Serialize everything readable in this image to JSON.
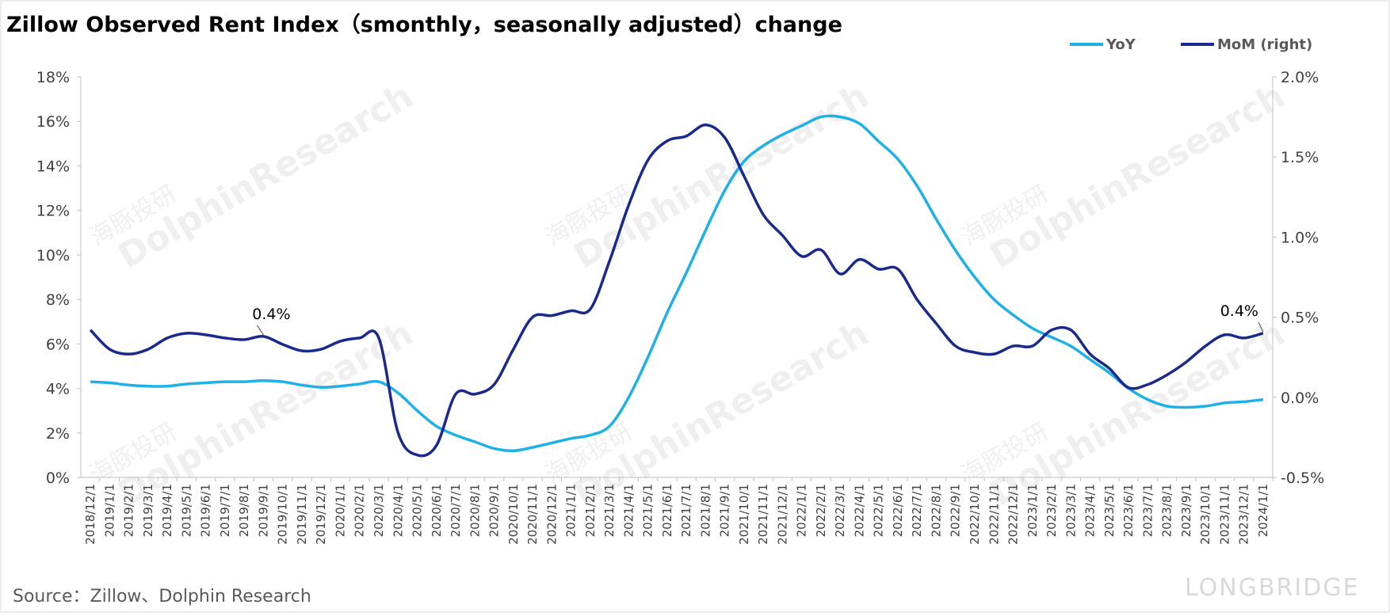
{
  "chart_data": {
    "type": "line",
    "title": "Zillow Observed Rent Index（smonthly，seasonally adjusted）change",
    "source": "Source：Zillow、Dolphin Research",
    "watermarks": [
      "海豚投研",
      "DolphinResearch",
      "LONGBRIDGE"
    ],
    "categories": [
      "2018/12/1",
      "2019/1/1",
      "2019/2/1",
      "2019/3/1",
      "2019/4/1",
      "2019/5/1",
      "2019/6/1",
      "2019/7/1",
      "2019/8/1",
      "2019/9/1",
      "2019/10/1",
      "2019/11/1",
      "2019/12/1",
      "2020/1/1",
      "2020/2/1",
      "2020/3/1",
      "2020/4/1",
      "2020/5/1",
      "2020/6/1",
      "2020/7/1",
      "2020/8/1",
      "2020/9/1",
      "2020/10/1",
      "2020/11/1",
      "2020/12/1",
      "2021/1/1",
      "2021/2/1",
      "2021/3/1",
      "2021/4/1",
      "2021/5/1",
      "2021/6/1",
      "2021/7/1",
      "2021/8/1",
      "2021/9/1",
      "2021/10/1",
      "2021/11/1",
      "2021/12/1",
      "2022/1/1",
      "2022/2/1",
      "2022/3/1",
      "2022/4/1",
      "2022/5/1",
      "2022/6/1",
      "2022/7/1",
      "2022/8/1",
      "2022/9/1",
      "2022/10/1",
      "2022/11/1",
      "2022/12/1",
      "2023/1/1",
      "2023/2/1",
      "2023/3/1",
      "2023/4/1",
      "2023/5/1",
      "2023/6/1",
      "2023/7/1",
      "2023/8/1",
      "2023/9/1",
      "2023/10/1",
      "2023/11/1",
      "2023/12/1",
      "2024/1/1"
    ],
    "series": [
      {
        "name": "YoY",
        "color": "#1fb0e6",
        "axis": "y",
        "values": [
          4.3,
          4.25,
          4.15,
          4.1,
          4.1,
          4.2,
          4.25,
          4.3,
          4.3,
          4.35,
          4.3,
          4.15,
          4.05,
          4.1,
          4.2,
          4.3,
          3.8,
          3.0,
          2.3,
          1.9,
          1.6,
          1.3,
          1.2,
          1.35,
          1.55,
          1.75,
          1.9,
          2.3,
          3.6,
          5.4,
          7.4,
          9.2,
          11.1,
          12.9,
          14.2,
          14.9,
          15.4,
          15.8,
          16.2,
          16.2,
          15.9,
          15.1,
          14.3,
          13.1,
          11.6,
          10.2,
          9.0,
          8.0,
          7.3,
          6.7,
          6.3,
          5.9,
          5.3,
          4.7,
          4.0,
          3.5,
          3.2,
          3.15,
          3.2,
          3.35,
          3.4,
          3.5
        ]
      },
      {
        "name": "MoM (right)",
        "color": "#1a2a8c",
        "axis": "y2",
        "values": [
          0.42,
          0.3,
          0.27,
          0.3,
          0.37,
          0.4,
          0.39,
          0.37,
          0.36,
          0.38,
          0.33,
          0.29,
          0.3,
          0.35,
          0.37,
          0.37,
          -0.22,
          -0.36,
          -0.3,
          0.02,
          0.02,
          0.08,
          0.3,
          0.5,
          0.51,
          0.54,
          0.55,
          0.85,
          1.2,
          1.48,
          1.6,
          1.63,
          1.7,
          1.62,
          1.38,
          1.14,
          1.01,
          0.88,
          0.92,
          0.77,
          0.86,
          0.8,
          0.8,
          0.61,
          0.46,
          0.32,
          0.28,
          0.27,
          0.32,
          0.32,
          0.42,
          0.42,
          0.27,
          0.18,
          0.06,
          0.08,
          0.14,
          0.22,
          0.32,
          0.39,
          0.37,
          0.4
        ],
        "value_labels": [
          null,
          null,
          null,
          null,
          null,
          null,
          null,
          null,
          null,
          "0.4%",
          null,
          null,
          null,
          null,
          null,
          null,
          null,
          null,
          null,
          null,
          null,
          null,
          null,
          null,
          null,
          null,
          null,
          null,
          null,
          null,
          null,
          null,
          null,
          null,
          null,
          null,
          null,
          null,
          null,
          null,
          null,
          null,
          null,
          null,
          null,
          null,
          null,
          null,
          null,
          null,
          null,
          null,
          null,
          null,
          null,
          null,
          null,
          null,
          null,
          null,
          null,
          "0.4%"
        ]
      }
    ],
    "ylim": [
      0,
      18
    ],
    "yticks": [
      {
        "value": 0,
        "label": "0%"
      },
      {
        "value": 2,
        "label": "2%"
      },
      {
        "value": 4,
        "label": "4%"
      },
      {
        "value": 6,
        "label": "6%"
      },
      {
        "value": 8,
        "label": "8%"
      },
      {
        "value": 10,
        "label": "10%"
      },
      {
        "value": 12,
        "label": "12%"
      },
      {
        "value": 14,
        "label": "14%"
      },
      {
        "value": 16,
        "label": "16%"
      },
      {
        "value": 18,
        "label": "18%"
      }
    ],
    "y2lim": [
      -0.5,
      2.0
    ],
    "y2ticks": [
      {
        "value": -0.5,
        "label": "-0.5%"
      },
      {
        "value": 0,
        "label": "0.0%"
      },
      {
        "value": 0.5,
        "label": "0.5%"
      },
      {
        "value": 1.0,
        "label": "1.0%"
      },
      {
        "value": 1.5,
        "label": "1.5%"
      },
      {
        "value": 2.0,
        "label": "2.0%"
      }
    ],
    "legend": "top-right"
  }
}
